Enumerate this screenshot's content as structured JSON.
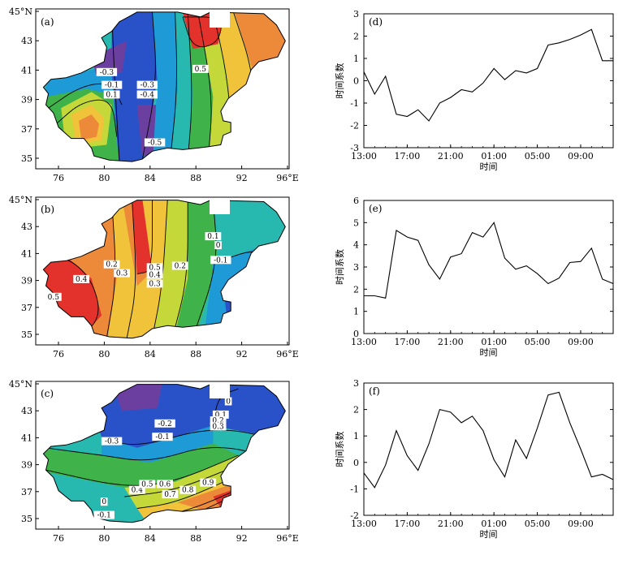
{
  "maps": [
    {
      "panel_label": "(a)",
      "x_ticks": [
        "76",
        "80",
        "84",
        "88",
        "92",
        "96°E"
      ],
      "y_ticks": [
        "45°N",
        "43",
        "41",
        "39",
        "37",
        "35"
      ],
      "colors": [
        "#6b3fa0",
        "#2a52c8",
        "#1e9ad6",
        "#27b8b0",
        "#3fb34a",
        "#c5d83a",
        "#f0c33a",
        "#ec8a3a",
        "#e2322b"
      ],
      "contour_labels": [
        "-0.3",
        "-0.1",
        "0.1",
        "-0.3",
        "-0.4",
        "0.5",
        "-0.5"
      ]
    },
    {
      "panel_label": "(b)",
      "x_ticks": [
        "76",
        "80",
        "84",
        "88",
        "92",
        "96°E"
      ],
      "y_ticks": [
        "45°N",
        "43",
        "41",
        "39",
        "37",
        "35"
      ],
      "colors": [
        "#e2322b",
        "#ec8a3a",
        "#f0c33a",
        "#c5d83a",
        "#3fb34a",
        "#27b8b0",
        "#1e9ad6",
        "#2a52c8"
      ],
      "contour_labels": [
        "0.5",
        "0.4",
        "0.2",
        "0.3",
        "0.5",
        "0.4",
        "0.3",
        "0.2",
        "0.1",
        "0",
        "-0.1"
      ]
    },
    {
      "panel_label": "(c)",
      "x_ticks": [
        "76",
        "80",
        "84",
        "88",
        "92",
        "96°E"
      ],
      "y_ticks": [
        "45°N",
        "43",
        "41",
        "39",
        "37",
        "35"
      ],
      "colors": [
        "#6b3fa0",
        "#2a52c8",
        "#1e9ad6",
        "#27b8b0",
        "#3fb34a",
        "#c5d83a",
        "#f0c33a",
        "#ec8a3a",
        "#e2322b"
      ],
      "contour_labels": [
        "-0.3",
        "-0.2",
        "-0.1",
        "0",
        "0.1",
        "0.2",
        "0.3",
        "0",
        "-0.1",
        "0.4",
        "0.5",
        "0.6",
        "0.7",
        "0.8",
        "0.9"
      ]
    }
  ],
  "chart_data": [
    {
      "type": "line",
      "panel_label": "(d)",
      "xlabel": "时间",
      "ylabel": "时间系数",
      "x_ticks": [
        "13:00",
        "17:00",
        "21:00",
        "01:00",
        "05:00",
        "09:00"
      ],
      "ylim": [
        -3,
        3
      ],
      "y_ticks": [
        "-3",
        "-2",
        "-1",
        "0",
        "1",
        "2",
        "3"
      ],
      "values": [
        0.4,
        -0.6,
        0.2,
        -1.5,
        -1.6,
        -1.3,
        -1.8,
        -1.0,
        -0.75,
        -0.4,
        -0.5,
        -0.1,
        0.55,
        0.05,
        0.45,
        0.35,
        0.55,
        1.6,
        1.7,
        1.85,
        2.05,
        2.3,
        0.9,
        0.9
      ]
    },
    {
      "type": "line",
      "panel_label": "(e)",
      "xlabel": "时间",
      "ylabel": "时间系数",
      "x_ticks": [
        "13:00",
        "17:00",
        "21:00",
        "01:00",
        "05:00",
        "09:00"
      ],
      "ylim": [
        0,
        6
      ],
      "y_ticks": [
        "0",
        "1",
        "2",
        "3",
        "4",
        "5",
        "6"
      ],
      "values": [
        1.7,
        1.7,
        1.6,
        4.65,
        4.35,
        4.2,
        3.1,
        2.45,
        3.45,
        3.6,
        4.55,
        4.35,
        5.0,
        3.4,
        2.9,
        3.05,
        2.7,
        2.25,
        2.5,
        3.2,
        3.25,
        3.85,
        2.45,
        2.25
      ]
    },
    {
      "type": "line",
      "panel_label": "(f)",
      "xlabel": "时间",
      "ylabel": "时间系数",
      "x_ticks": [
        "13:00",
        "17:00",
        "21:00",
        "01:00",
        "05:00",
        "09:00"
      ],
      "ylim": [
        -2,
        3
      ],
      "y_ticks": [
        "-2",
        "-1",
        "0",
        "1",
        "2",
        "3"
      ],
      "values": [
        -0.4,
        -0.95,
        -0.1,
        1.2,
        0.25,
        -0.3,
        0.7,
        2.0,
        1.9,
        1.5,
        1.75,
        1.2,
        0.1,
        -0.55,
        0.85,
        0.15,
        1.3,
        2.55,
        2.65,
        1.5,
        0.5,
        -0.55,
        -0.45,
        -0.65
      ]
    }
  ]
}
